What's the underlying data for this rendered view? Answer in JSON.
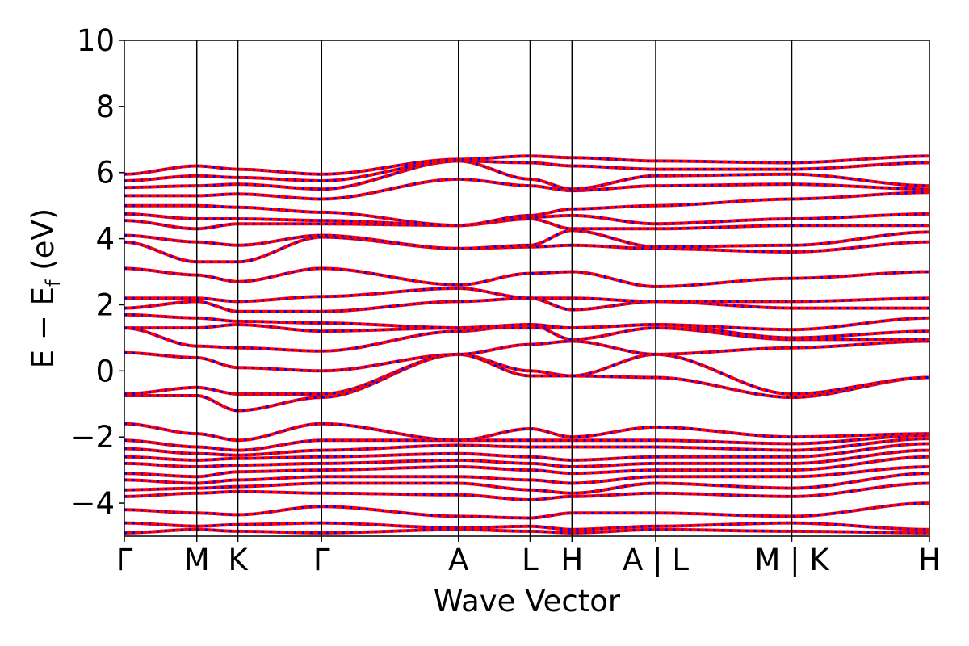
{
  "chart_data": {
    "type": "line",
    "title": "",
    "xlabel": "Wave Vector",
    "ylabel": "E − E_f (eV)",
    "ylabel_parts": {
      "main": "E − E",
      "sub": "f",
      "tail": " (eV)"
    },
    "ylim": [
      -5,
      10
    ],
    "yticks": [
      -4,
      -2,
      0,
      2,
      4,
      6,
      8,
      10
    ],
    "ytick_labels": [
      "−4",
      "−2",
      "0",
      "2",
      "4",
      "6",
      "8",
      "10"
    ],
    "xlim": [
      0,
      10
    ],
    "kpoints": [
      {
        "x": 0.0,
        "label": "Γ"
      },
      {
        "x": 0.9,
        "label": "M"
      },
      {
        "x": 1.41,
        "label": "K"
      },
      {
        "x": 2.45,
        "label": "Γ"
      },
      {
        "x": 4.15,
        "label": "A"
      },
      {
        "x": 5.04,
        "label": "L"
      },
      {
        "x": 5.56,
        "label": "H"
      },
      {
        "x": 6.6,
        "label": "A | L"
      },
      {
        "x": 8.29,
        "label": "M | K"
      },
      {
        "x": 10.0,
        "label": "H"
      }
    ],
    "grid": false,
    "series": [
      {
        "color": "#ff0000",
        "style": "solid",
        "width": 4
      },
      {
        "color": "#0000ff",
        "style": "dotted",
        "width": 3
      }
    ],
    "bands": {
      "energies_at_kpoints": [
        [
          -4.9,
          -4.8,
          -4.85,
          -4.9,
          -4.8,
          -4.85,
          -4.9,
          -4.8,
          -4.85,
          -4.9
        ],
        [
          -4.6,
          -4.7,
          -4.65,
          -4.6,
          -4.75,
          -4.7,
          -4.8,
          -4.7,
          -4.6,
          -4.8
        ],
        [
          -4.2,
          -4.3,
          -4.35,
          -4.1,
          -4.4,
          -4.45,
          -4.3,
          -4.3,
          -4.4,
          -4.0
        ],
        [
          -3.8,
          -3.7,
          -3.65,
          -3.7,
          -3.75,
          -3.9,
          -3.8,
          -3.7,
          -3.8,
          -3.4
        ],
        [
          -3.6,
          -3.55,
          -3.5,
          -3.4,
          -3.4,
          -3.6,
          -3.7,
          -3.4,
          -3.55,
          -3.1
        ],
        [
          -3.3,
          -3.4,
          -3.3,
          -3.2,
          -3.2,
          -3.3,
          -3.4,
          -3.2,
          -3.2,
          -2.9
        ],
        [
          -3.1,
          -3.2,
          -3.05,
          -3.0,
          -2.9,
          -3.0,
          -3.1,
          -3.0,
          -3.0,
          -2.6
        ],
        [
          -2.8,
          -2.9,
          -2.85,
          -2.8,
          -2.7,
          -2.8,
          -2.9,
          -2.8,
          -2.8,
          -2.4
        ],
        [
          -2.6,
          -2.7,
          -2.65,
          -2.6,
          -2.5,
          -2.6,
          -2.7,
          -2.6,
          -2.6,
          -2.2
        ],
        [
          -2.35,
          -2.5,
          -2.55,
          -2.4,
          -2.25,
          -2.3,
          -2.3,
          -2.3,
          -2.4,
          -2.05
        ],
        [
          -2.1,
          -2.3,
          -2.4,
          -2.1,
          -2.1,
          -2.1,
          -2.1,
          -2.1,
          -2.2,
          -1.95
        ],
        [
          -1.6,
          -1.9,
          -2.1,
          -1.6,
          -2.1,
          -1.75,
          -2.0,
          -1.7,
          -2.0,
          -1.9
        ],
        [
          -0.75,
          -0.75,
          -1.2,
          -0.8,
          0.5,
          0.0,
          -0.15,
          -0.2,
          -0.8,
          -0.2
        ],
        [
          -0.7,
          -0.5,
          -0.7,
          -0.7,
          0.5,
          -0.15,
          -0.15,
          0.5,
          -0.7,
          -0.2
        ],
        [
          0.55,
          0.4,
          0.1,
          0.0,
          0.5,
          0.8,
          0.9,
          0.5,
          0.7,
          0.9
        ],
        [
          1.3,
          0.75,
          0.7,
          0.6,
          1.2,
          1.4,
          0.95,
          1.3,
          0.95,
          0.95
        ],
        [
          1.3,
          1.3,
          1.4,
          1.2,
          1.3,
          1.3,
          1.3,
          1.4,
          1.0,
          1.2
        ],
        [
          1.7,
          1.6,
          1.5,
          1.45,
          1.3,
          1.4,
          1.3,
          1.4,
          1.25,
          1.6
        ],
        [
          1.9,
          2.1,
          1.8,
          1.8,
          2.1,
          2.2,
          1.85,
          2.1,
          1.9,
          1.9
        ],
        [
          2.2,
          2.2,
          2.1,
          2.25,
          2.5,
          2.2,
          2.2,
          2.1,
          2.1,
          2.2
        ],
        [
          3.1,
          2.9,
          2.7,
          3.1,
          2.6,
          2.95,
          3.0,
          2.55,
          2.8,
          3.0
        ],
        [
          3.9,
          3.3,
          3.3,
          4.05,
          3.7,
          3.75,
          3.8,
          3.7,
          3.6,
          3.9
        ],
        [
          4.1,
          3.9,
          3.8,
          4.1,
          3.7,
          3.8,
          4.25,
          3.75,
          3.8,
          4.2
        ],
        [
          4.55,
          4.3,
          4.45,
          4.45,
          4.4,
          4.6,
          4.3,
          4.3,
          4.4,
          4.4
        ],
        [
          4.75,
          4.6,
          4.6,
          4.55,
          4.4,
          4.65,
          4.7,
          4.45,
          4.6,
          4.75
        ],
        [
          5.0,
          5.0,
          4.95,
          4.8,
          4.4,
          4.7,
          4.9,
          5.0,
          5.2,
          5.4
        ],
        [
          5.3,
          5.3,
          5.35,
          5.2,
          5.8,
          5.6,
          5.45,
          5.6,
          5.65,
          5.5
        ],
        [
          5.55,
          5.6,
          5.65,
          5.5,
          6.35,
          5.8,
          5.5,
          5.9,
          5.95,
          5.6
        ],
        [
          5.75,
          5.9,
          5.85,
          5.75,
          6.35,
          6.3,
          6.2,
          6.1,
          6.1,
          6.3
        ],
        [
          5.95,
          6.2,
          6.1,
          5.95,
          6.4,
          6.5,
          6.45,
          6.35,
          6.3,
          6.5
        ]
      ]
    }
  }
}
